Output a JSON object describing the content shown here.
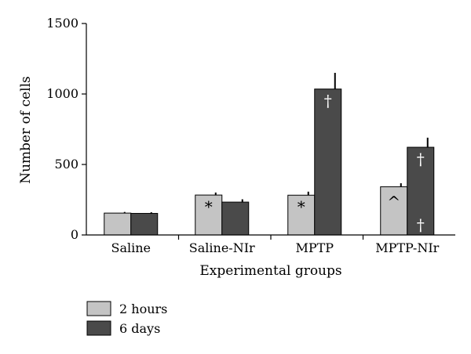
{
  "chart_data": {
    "type": "bar",
    "title": "",
    "xlabel": "Experimental groups",
    "ylabel": "Number of cells",
    "ylim": [
      0,
      1500
    ],
    "yticks": [
      0,
      500,
      1000,
      1500
    ],
    "grid": false,
    "legend_position": "bottom-left",
    "categories": [
      "Saline",
      "Saline-NIr",
      "MPTP",
      "MPTP-NIr"
    ],
    "series": [
      {
        "name": "2 hours",
        "color": "#c4c4c4",
        "values": [
          155,
          283,
          282,
          342
        ],
        "errors": [
          8,
          18,
          25,
          25
        ]
      },
      {
        "name": "6 days",
        "color": "#4a4a4a",
        "values": [
          153,
          233,
          1035,
          622
        ],
        "errors": [
          8,
          20,
          115,
          68
        ]
      }
    ],
    "annotations": [
      {
        "category": 1,
        "series": 0,
        "text": "*",
        "placement": "inside-top"
      },
      {
        "category": 2,
        "series": 0,
        "text": "*",
        "placement": "inside-top"
      },
      {
        "category": 2,
        "series": 1,
        "text": "†",
        "placement": "inside-top"
      },
      {
        "category": 3,
        "series": 0,
        "text": "^",
        "placement": "inside-top"
      },
      {
        "category": 3,
        "series": 1,
        "text": "†",
        "placement": "inside-top"
      },
      {
        "category": 3,
        "series": 1,
        "text": "†",
        "placement": "inside-bottom"
      }
    ]
  }
}
